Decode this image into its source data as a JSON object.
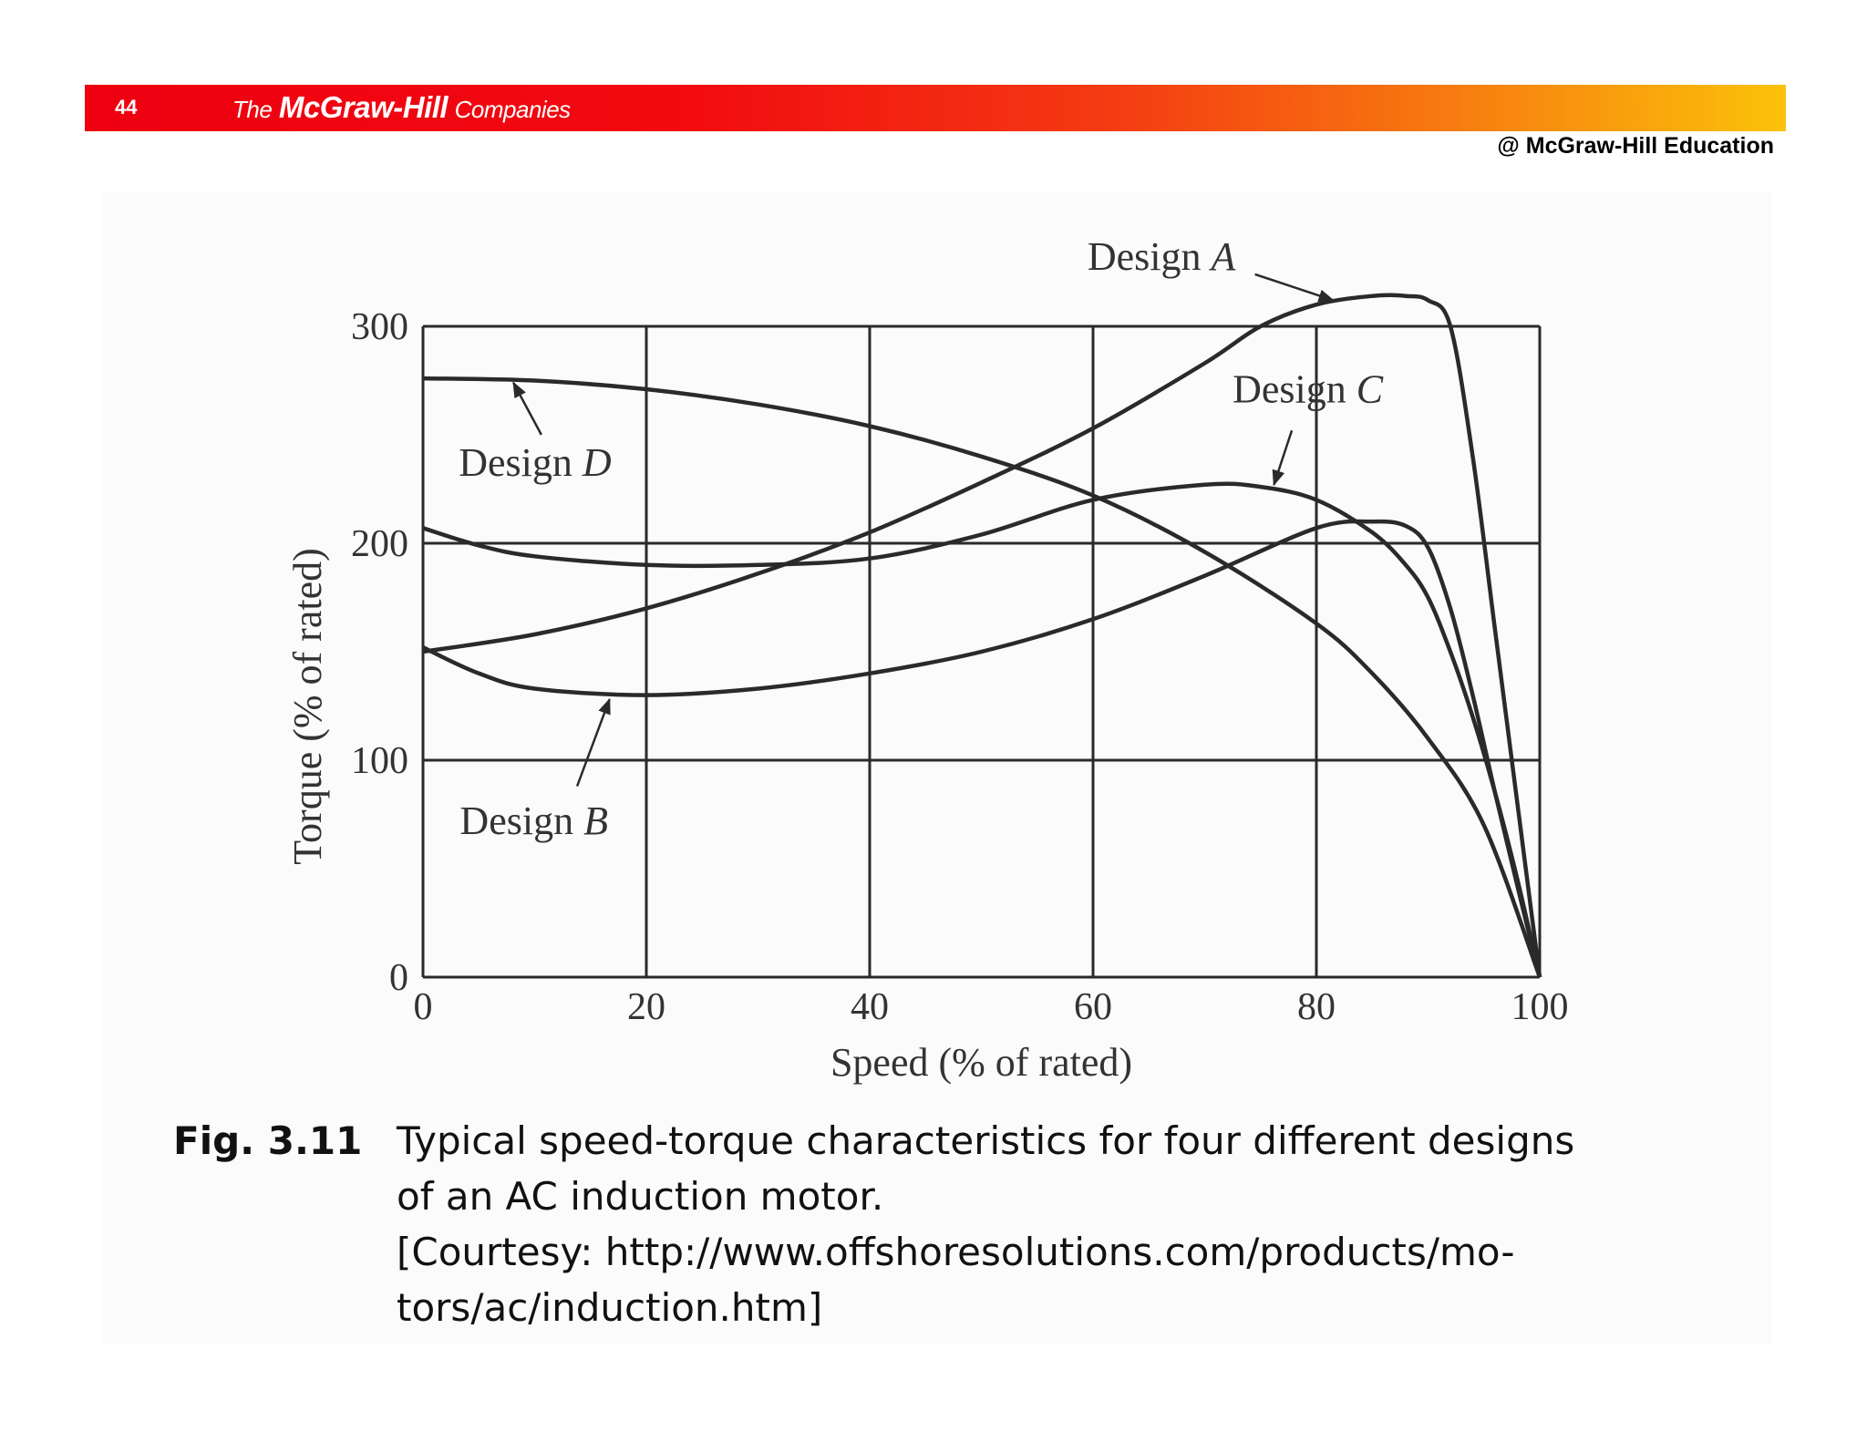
{
  "header": {
    "page_number": "44",
    "logo": {
      "the": "The",
      "brand": "McGraw-Hill",
      "companies": "Companies"
    },
    "copyright": "@ McGraw-Hill Education"
  },
  "colors": {
    "banner_start": "#ee0010",
    "banner_end": "#fbc20a",
    "curve": "#2a2a2a",
    "grid": "#2a2a2a"
  },
  "chart_data": {
    "type": "line",
    "xlabel": "Speed (% of rated)",
    "ylabel": "Torque (% of rated)",
    "xlim": [
      0,
      100
    ],
    "ylim": [
      0,
      300
    ],
    "xticks": [
      "0",
      "20",
      "40",
      "60",
      "80",
      "100"
    ],
    "yticks": [
      "0",
      "100",
      "200",
      "300"
    ],
    "grid": true,
    "series": [
      {
        "name": "Design A",
        "label_prefix": "Design ",
        "label_letter": "A",
        "x": [
          0,
          10,
          20,
          30,
          40,
          50,
          60,
          70,
          75,
          80,
          85,
          88,
          90,
          92,
          94,
          96,
          98,
          100
        ],
        "y": [
          150,
          158,
          170,
          186,
          205,
          228,
          253,
          283,
          300,
          310,
          314,
          314,
          312,
          300,
          240,
          160,
          80,
          0
        ]
      },
      {
        "name": "Design B",
        "label_prefix": "Design ",
        "label_letter": "B",
        "x": [
          0,
          5,
          10,
          20,
          30,
          40,
          50,
          60,
          70,
          80,
          85,
          88,
          90,
          92,
          94,
          96,
          98,
          100
        ],
        "y": [
          152,
          140,
          133,
          130,
          133,
          140,
          150,
          165,
          185,
          207,
          210,
          208,
          198,
          170,
          130,
          85,
          42,
          0
        ]
      },
      {
        "name": "Design C",
        "label_prefix": "Design ",
        "label_letter": "C",
        "x": [
          0,
          5,
          10,
          20,
          30,
          40,
          50,
          60,
          70,
          75,
          80,
          85,
          88,
          90,
          92,
          94,
          96,
          98,
          100
        ],
        "y": [
          207,
          199,
          194,
          190,
          190,
          193,
          204,
          220,
          227,
          226,
          220,
          205,
          190,
          175,
          150,
          120,
          85,
          45,
          0
        ]
      },
      {
        "name": "Design D",
        "label_prefix": "Design ",
        "label_letter": "D",
        "x": [
          0,
          10,
          20,
          30,
          40,
          50,
          60,
          70,
          80,
          85,
          90,
          95,
          100
        ],
        "y": [
          276,
          275,
          271,
          264,
          254,
          240,
          222,
          196,
          163,
          140,
          110,
          70,
          0
        ]
      }
    ]
  },
  "caption": {
    "label": "Fig. 3.11",
    "lines": [
      "Typical speed-torque characteristics for four different designs",
      "of an AC induction motor.",
      "[Courtesy: http://www.offshoresolutions.com/products/mo-",
      "tors/ac/induction.htm]"
    ]
  }
}
